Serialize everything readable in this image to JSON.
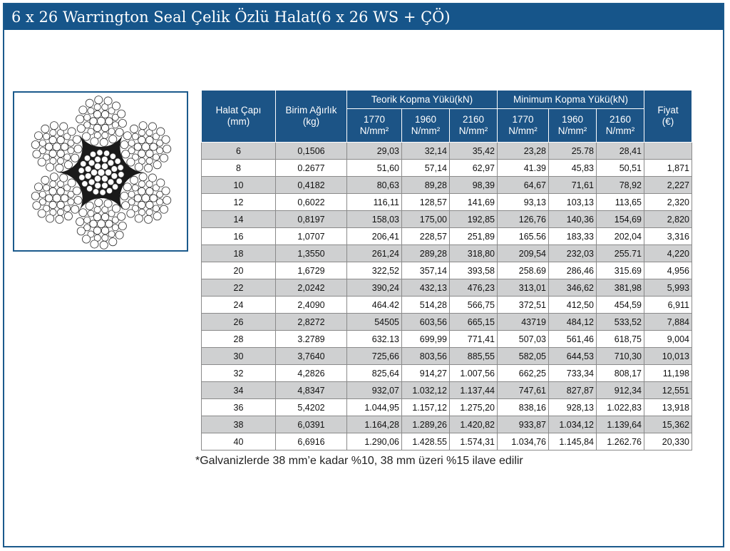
{
  "title": "6 x 26 Warrington Seal Çelik Özlü Halat(6 x 26 WS + ÇÖ)",
  "image": {
    "icon": "wire-rope-cross-section-icon"
  },
  "table": {
    "headers": {
      "diameter": "Halat Çapı\n(mm)",
      "weight": "Birim Ağırlık\n(kg)",
      "theoretical": "Teorik Kopma Yükü(kN)",
      "minimum": "Minimum Kopma Yükü(kN)",
      "price": "Fiyat\n(€)",
      "sub": [
        "1770\nN/mm²",
        "1960\nN/mm²",
        "2160\nN/mm²",
        "1770\nN/mm²",
        "1960\nN/mm²",
        "2160\nN/mm²"
      ]
    },
    "rows": [
      [
        "6",
        "0,1506",
        "29,03",
        "32,14",
        "35,42",
        "23,28",
        "25.78",
        "28,41",
        ""
      ],
      [
        "8",
        "0.2677",
        "51,60",
        "57,14",
        "62,97",
        "41.39",
        "45,83",
        "50,51",
        "1,871"
      ],
      [
        "10",
        "0,4182",
        "80,63",
        "89,28",
        "98,39",
        "64,67",
        "71,61",
        "78,92",
        "2,227"
      ],
      [
        "12",
        "0,6022",
        "116,11",
        "128,57",
        "141,69",
        "93,13",
        "103,13",
        "113,65",
        "2,320"
      ],
      [
        "14",
        "0,8197",
        "158,03",
        "175,00",
        "192,85",
        "126,76",
        "140,36",
        "154,69",
        "2,820"
      ],
      [
        "16",
        "1,0707",
        "206,41",
        "228,57",
        "251,89",
        "165.56",
        "183,33",
        "202,04",
        "3,316"
      ],
      [
        "18",
        "1,3550",
        "261,24",
        "289,28",
        "318,80",
        "209,54",
        "232,03",
        "255.71",
        "4,220"
      ],
      [
        "20",
        "1,6729",
        "322,52",
        "357,14",
        "393,58",
        "258.69",
        "286,46",
        "315.69",
        "4,956"
      ],
      [
        "22",
        "2,0242",
        "390,24",
        "432,13",
        "476,23",
        "313,01",
        "346,62",
        "381,98",
        "5,993"
      ],
      [
        "24",
        "2,4090",
        "464.42",
        "514,28",
        "566,75",
        "372,51",
        "412,50",
        "454,59",
        "6,911"
      ],
      [
        "26",
        "2,8272",
        "54505",
        "603,56",
        "665,15",
        "43719",
        "484,12",
        "533,52",
        "7,884"
      ],
      [
        "28",
        "3.2789",
        "632.13",
        "699,99",
        "771,41",
        "507,03",
        "561,46",
        "618,75",
        "9,004"
      ],
      [
        "30",
        "3,7640",
        "725,66",
        "803,56",
        "885,55",
        "582,05",
        "644,53",
        "710,30",
        "10,013"
      ],
      [
        "32",
        "4,2826",
        "825,64",
        "914,27",
        "1.007,56",
        "662,25",
        "733,34",
        "808,17",
        "11,198"
      ],
      [
        "34",
        "4,8347",
        "932,07",
        "1.032,12",
        "1.137,44",
        "747,61",
        "827,87",
        "912,34",
        "12,551"
      ],
      [
        "36",
        "5,4202",
        "1.044,95",
        "1.157,12",
        "1.275,20",
        "838,16",
        "928,13",
        "1.022,83",
        "13,918"
      ],
      [
        "38",
        "6,0391",
        "1.164,28",
        "1.289,26",
        "1.420,82",
        "933,87",
        "1.034,12",
        "1.139,64",
        "15,362"
      ],
      [
        "40",
        "6,6916",
        "1.290,06",
        "1.428.55",
        "1.574,31",
        "1.034,76",
        "1.145,84",
        "1.262.76",
        "20,330"
      ]
    ]
  },
  "note": "*Galvanizlerde 38 mm’e kadar %10, 38 mm üzeri %15 ilave edilir"
}
